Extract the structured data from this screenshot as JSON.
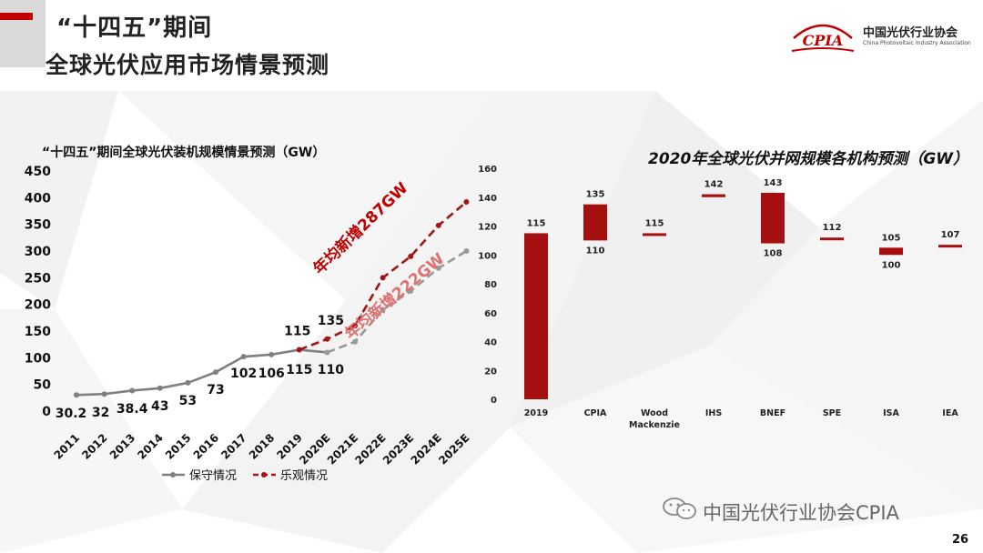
{
  "header": {
    "title_line1": "“十四五”期间",
    "title_line2": "全球光伏应用市场情景预测"
  },
  "logo": {
    "mark_text": "CPIA",
    "org_cn": "中国光伏行业协会",
    "org_en": "China Photovoltaic Industry Association"
  },
  "colors": {
    "accent_red": "#c00000",
    "series_gray": "#808080",
    "series_red": "#a31515",
    "bar_red": "#a50f0f"
  },
  "chart_data": [
    {
      "type": "line",
      "title": "“十四五”期间全球光伏装机规模情景预测（GW）",
      "x": [
        "2011",
        "2012",
        "2013",
        "2014",
        "2015",
        "2016",
        "2017",
        "2018",
        "2019",
        "2020E",
        "2021E",
        "2022E",
        "2023E",
        "2024E",
        "2025E"
      ],
      "ylim": [
        0,
        450
      ],
      "yticks": [
        0,
        50,
        100,
        150,
        200,
        250,
        300,
        350,
        400,
        450
      ],
      "grid": false,
      "legend_position": "bottom",
      "series": [
        {
          "name": "保守情况",
          "values": [
            30.2,
            32,
            38.4,
            43,
            53,
            73,
            102,
            106,
            115,
            110,
            130,
            190,
            225,
            268,
            300
          ],
          "color": "#808080",
          "style": "solid-then-dashed"
        },
        {
          "name": "乐观情况",
          "values": [
            null,
            null,
            null,
            null,
            null,
            null,
            null,
            null,
            115,
            135,
            160,
            250,
            290,
            348,
            392
          ],
          "color": "#a31515",
          "style": "dashed"
        }
      ],
      "data_labels": [
        {
          "text": "30.2",
          "series": 0,
          "index": 0
        },
        {
          "text": "32",
          "series": 0,
          "index": 1
        },
        {
          "text": "38.4",
          "series": 0,
          "index": 2
        },
        {
          "text": "43",
          "series": 0,
          "index": 3
        },
        {
          "text": "53",
          "series": 0,
          "index": 4
        },
        {
          "text": "73",
          "series": 0,
          "index": 5
        },
        {
          "text": "102",
          "series": 0,
          "index": 6
        },
        {
          "text": "106",
          "series": 0,
          "index": 7
        },
        {
          "text": "115",
          "series": 0,
          "index": 8
        },
        {
          "text": "110",
          "series": 0,
          "index": 9
        },
        {
          "text": "115",
          "series": 1,
          "index": 8
        },
        {
          "text": "135",
          "series": 1,
          "index": 9
        }
      ],
      "annotations": [
        {
          "text": "年均新增287GW",
          "color": "#c00000"
        },
        {
          "text": "年均新增222GW",
          "color": "#e07070"
        }
      ]
    },
    {
      "type": "bar",
      "title": "2020年全球光伏并网规模各机构预测（GW）",
      "categories": [
        "2019",
        "CPIA",
        "Wood\nMackenzie",
        "IHS",
        "BNEF",
        "SPE",
        "ISA",
        "IEA"
      ],
      "ranges": [
        [
          0,
          115
        ],
        [
          110,
          135
        ],
        [
          114,
          115
        ],
        [
          140,
          142
        ],
        [
          108,
          143
        ],
        [
          111,
          112
        ],
        [
          100,
          105
        ],
        [
          106,
          107
        ]
      ],
      "labels_top": [
        "115",
        "135",
        "115",
        "142",
        "143",
        "112",
        "105",
        "107"
      ],
      "labels_bottom": [
        "",
        "110",
        "",
        "",
        "108",
        "",
        "100",
        ""
      ],
      "ylim": [
        0,
        160
      ],
      "yticks": [
        0,
        20,
        40,
        60,
        80,
        100,
        120,
        140,
        160
      ],
      "grid": false,
      "color": "#a50f0f"
    }
  ],
  "footer": {
    "wechat_text": "中国光伏行业协会CPIA",
    "page_number": "26"
  }
}
